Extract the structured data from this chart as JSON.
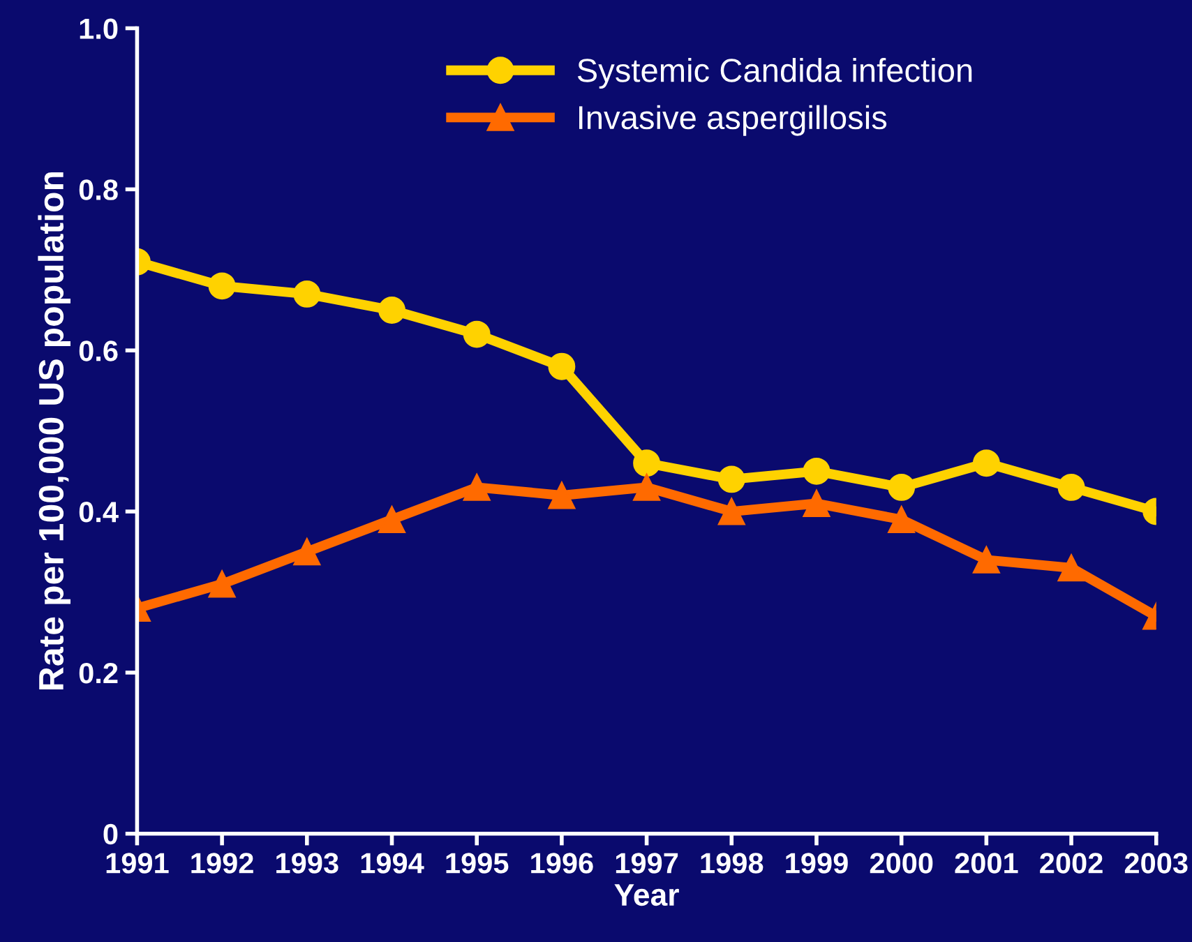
{
  "chart_data": {
    "type": "line",
    "xlabel": "Year",
    "ylabel": "Rate per 100,000 US population",
    "categories": [
      "1991",
      "1992",
      "1993",
      "1994",
      "1995",
      "1996",
      "1997",
      "1998",
      "1999",
      "2000",
      "2001",
      "2002",
      "2003"
    ],
    "series": [
      {
        "name": "Systemic Candida infection",
        "color": "#ffd200",
        "marker": "circle",
        "values": [
          0.71,
          0.68,
          0.67,
          0.65,
          0.62,
          0.58,
          0.46,
          0.44,
          0.45,
          0.43,
          0.46,
          0.43,
          0.4
        ]
      },
      {
        "name": "Invasive aspergillosis",
        "color": "#ff6a00",
        "marker": "triangle",
        "values": [
          0.28,
          0.31,
          0.35,
          0.39,
          0.43,
          0.42,
          0.43,
          0.4,
          0.41,
          0.39,
          0.34,
          0.33,
          0.27
        ]
      }
    ],
    "ylim": [
      0,
      1
    ],
    "yticks": [
      0,
      0.2,
      0.4,
      0.6,
      0.8,
      {
        "value": 1,
        "label": "1.0"
      }
    ],
    "legend": "top right",
    "grid": false
  }
}
